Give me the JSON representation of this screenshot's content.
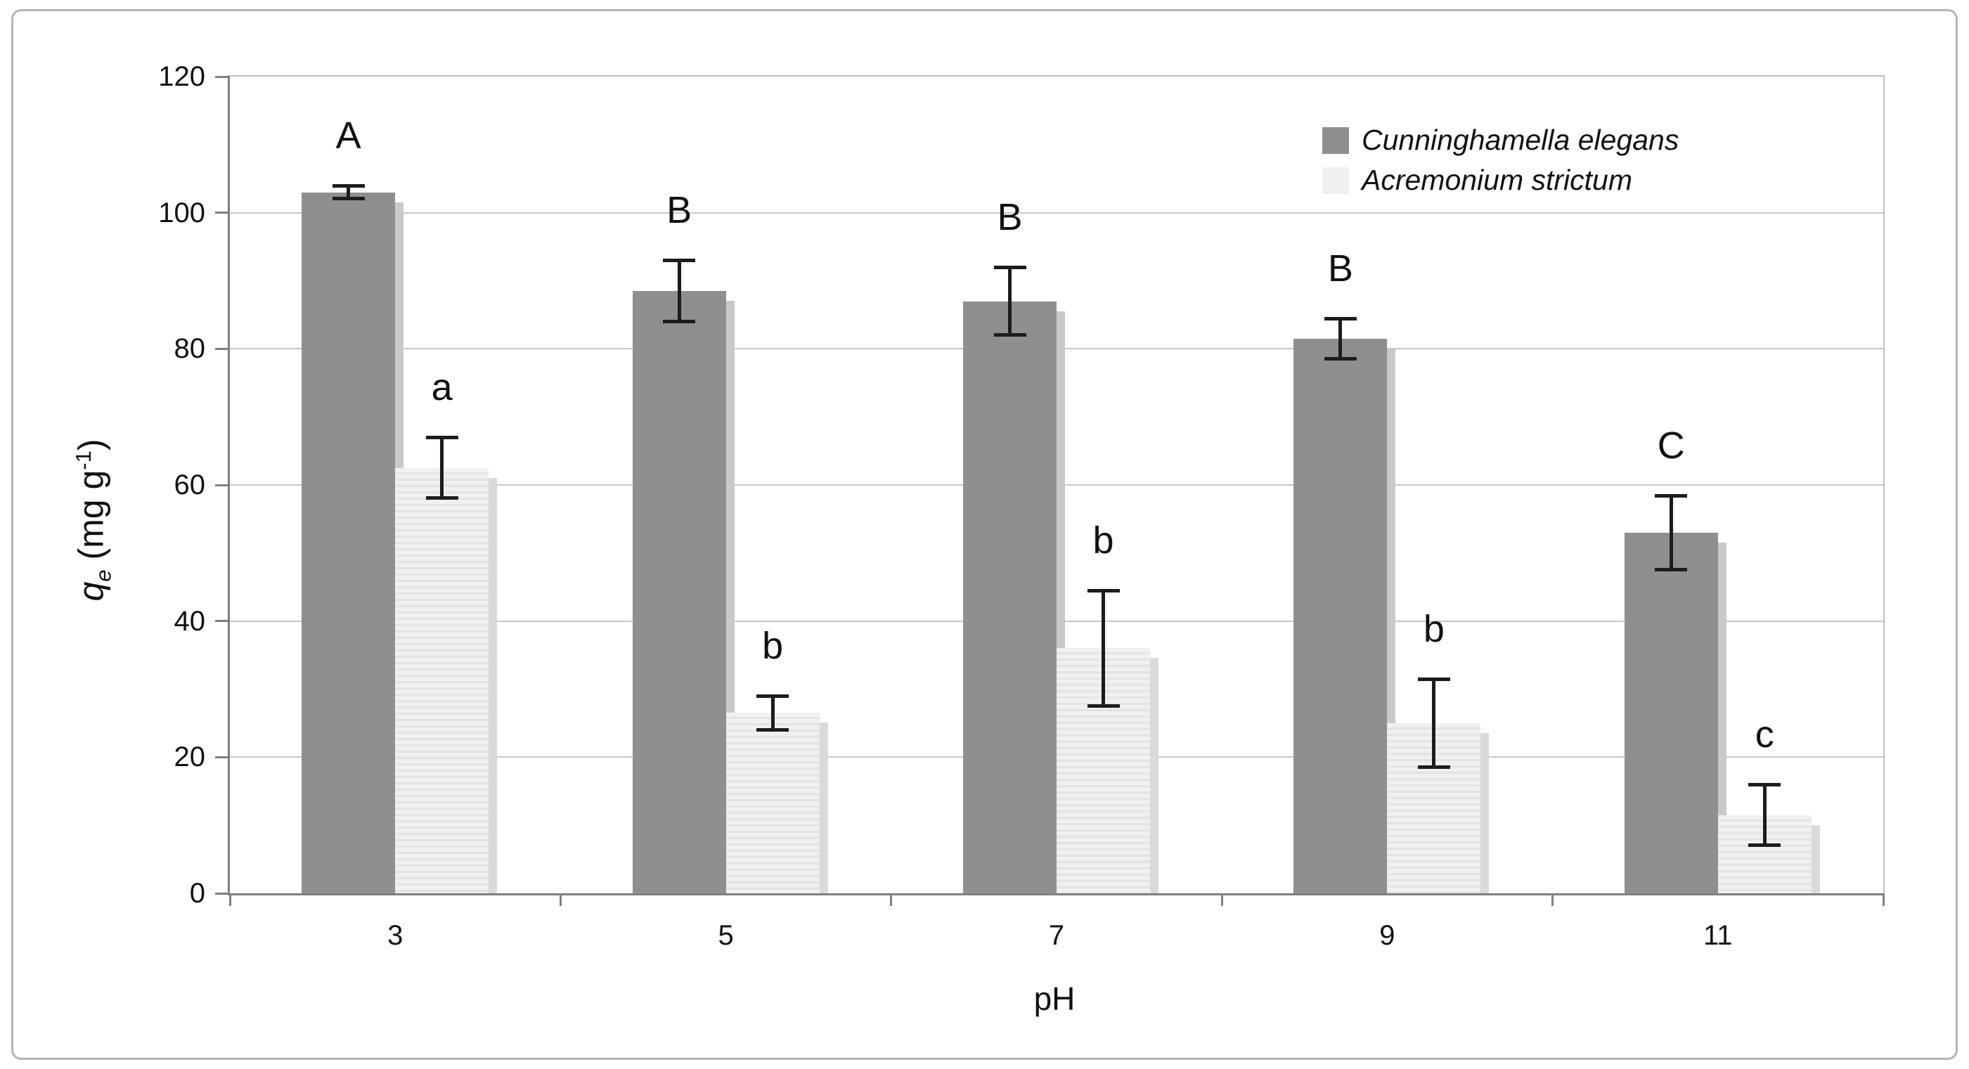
{
  "chart_data": {
    "type": "bar",
    "title": "",
    "xlabel": "pH",
    "ylabel": "qe (mg g-1)",
    "ylabel_parts": {
      "var": "q",
      "var_sub": "e",
      "unit_pre": " (mg g",
      "unit_sup": "-1",
      "unit_post": ")"
    },
    "categories": [
      "3",
      "5",
      "7",
      "9",
      "11"
    ],
    "series": [
      {
        "name": "Cunninghamella elegans",
        "color": "#8f8f8f",
        "shadow_color": "#c9c9c9",
        "values": [
          103,
          88.5,
          87,
          81.5,
          53
        ],
        "errors": [
          1,
          4.5,
          5,
          3,
          5.5
        ],
        "sig_letters": [
          "A",
          "B",
          "B",
          "B",
          "C"
        ]
      },
      {
        "name": "Acremonium strictum",
        "color": "#f0f0f0",
        "stripe_color": "#e3e3e3",
        "shadow_color": "#dadada",
        "values": [
          62.5,
          26.5,
          36,
          25,
          11.5
        ],
        "errors": [
          4.5,
          2.5,
          8.5,
          6.5,
          4.5
        ],
        "sig_letters": [
          "a",
          "b",
          "b",
          "b",
          "c"
        ]
      }
    ],
    "ylim": [
      0,
      120
    ],
    "ytick_step": 20,
    "yticks": [
      "0",
      "20",
      "40",
      "60",
      "80",
      "100",
      "120"
    ],
    "grid": true,
    "legend_position": "top-right"
  },
  "colors": {
    "gridline": "#c7c7c7",
    "axis": "#7f7f7f",
    "error_bar": "#1c1c1c",
    "text": "#111111",
    "frame_border": "#b4b4bc"
  }
}
